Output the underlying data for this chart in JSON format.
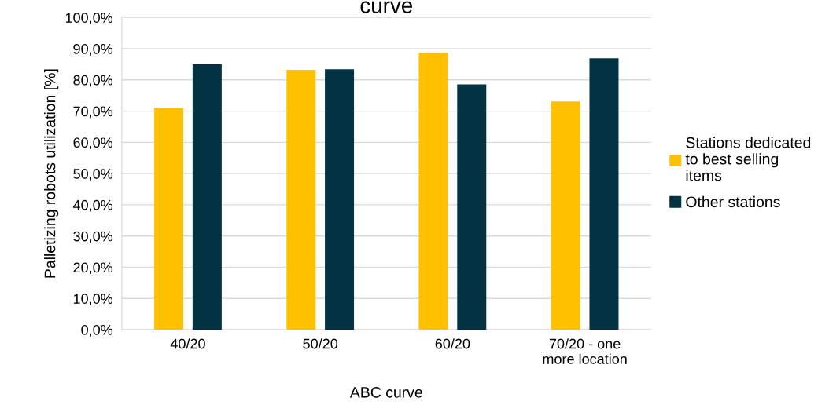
{
  "chart_data": {
    "type": "bar",
    "title": "curve",
    "xlabel": "ABC curve",
    "ylabel": "Palletizing robots utilization [%]",
    "categories": [
      "40/20",
      "50/20",
      "60/20",
      "70/20 - one\nmore location"
    ],
    "series": [
      {
        "name": "Stations dedicated\nto best selling\nitems",
        "color": "#ffc000",
        "values": [
          71.0,
          83.2,
          88.7,
          73.1
        ]
      },
      {
        "name": "Other stations",
        "color": "#033342",
        "values": [
          85.0,
          83.4,
          78.6,
          86.9
        ]
      }
    ],
    "ylim": [
      0,
      100
    ],
    "yticks": [
      {
        "value": 0,
        "label": "0,0%"
      },
      {
        "value": 10,
        "label": "10,0%"
      },
      {
        "value": 20,
        "label": "20,0%"
      },
      {
        "value": 30,
        "label": "30,0%"
      },
      {
        "value": 40,
        "label": "40,0%"
      },
      {
        "value": 50,
        "label": "50,0%"
      },
      {
        "value": 60,
        "label": "60,0%"
      },
      {
        "value": 70,
        "label": "70,0%"
      },
      {
        "value": 80,
        "label": "80,0%"
      },
      {
        "value": 90,
        "label": "90,0%"
      },
      {
        "value": 100,
        "label": "100,0%"
      }
    ],
    "grid": "y",
    "legend": "right"
  }
}
